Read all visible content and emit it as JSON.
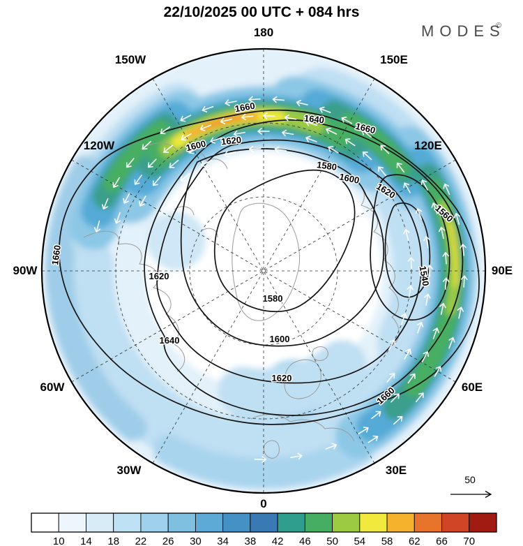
{
  "header": {
    "title": "22/10/2025  00 UTC  + 084 hrs",
    "brand": "MODES",
    "brand_mark": "©"
  },
  "map": {
    "longitude_labels": [
      "180",
      "150W",
      "150E",
      "120W",
      "120E",
      "90W",
      "90E",
      "60W",
      "60E",
      "30W",
      "30E",
      "0"
    ],
    "contour_labels": [
      "1660",
      "1640",
      "1660",
      "1600",
      "1620",
      "1580",
      "1600",
      "1620",
      "1560",
      "1540",
      "1660",
      "1620",
      "1640",
      "1580",
      "1600",
      "1620",
      "1660"
    ]
  },
  "reference_arrow": {
    "label": "50"
  },
  "colorbar": {
    "tick_labels": [
      "10",
      "14",
      "18",
      "22",
      "26",
      "30",
      "34",
      "38",
      "42",
      "46",
      "50",
      "54",
      "58",
      "62",
      "66",
      "70"
    ],
    "colors": [
      "#ffffff",
      "#edf6fc",
      "#d8ecf8",
      "#bee1f4",
      "#a0d1ec",
      "#7fc0e1",
      "#5caad5",
      "#4591c6",
      "#3a7ab4",
      "#2f9e8f",
      "#46ae62",
      "#9ccb43",
      "#f2e93d",
      "#f5b32d",
      "#e8742c",
      "#cf4525",
      "#a01b12"
    ]
  },
  "chart_data": {
    "type": "heatmap",
    "title": "22/10/2025  00 UTC  + 084 hrs",
    "projection": "Northern Hemisphere polar stereographic",
    "contour_field": {
      "labeled_values": [
        1540,
        1560,
        1580,
        1600,
        1620,
        1640,
        1660
      ],
      "interval": 20,
      "pattern": "closed polar low (1540-1580 near pole, trough lobe toward 90E-120E), heights increasing outward to 1660 near outer boundary"
    },
    "shading_field": {
      "description": "wind speed shading, strongest jet band (yellow-orange, ~58-66) across 150W-180 sector and green band (~46-58) along 30E-150E flank",
      "bin_edges": [
        10,
        14,
        18,
        22,
        26,
        30,
        34,
        38,
        42,
        46,
        50,
        54,
        58,
        62,
        66,
        70
      ]
    },
    "wind_reference_arrow": 50,
    "longitude_ticks": [
      "180",
      "150W",
      "150E",
      "120W",
      "120E",
      "90W",
      "90E",
      "60W",
      "60E",
      "30W",
      "30E",
      "0"
    ],
    "legend_position": "bottom"
  }
}
